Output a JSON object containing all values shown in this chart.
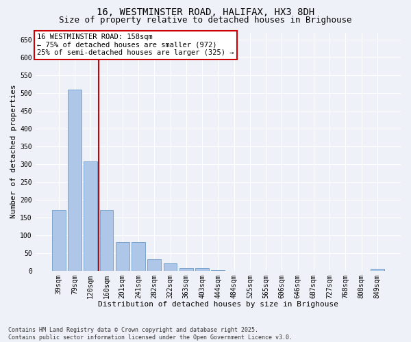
{
  "title": "16, WESTMINSTER ROAD, HALIFAX, HX3 8DH",
  "subtitle": "Size of property relative to detached houses in Brighouse",
  "xlabel": "Distribution of detached houses by size in Brighouse",
  "ylabel": "Number of detached properties",
  "categories": [
    "39sqm",
    "79sqm",
    "120sqm",
    "160sqm",
    "201sqm",
    "241sqm",
    "282sqm",
    "322sqm",
    "363sqm",
    "403sqm",
    "444sqm",
    "484sqm",
    "525sqm",
    "565sqm",
    "606sqm",
    "646sqm",
    "687sqm",
    "727sqm",
    "768sqm",
    "808sqm",
    "849sqm"
  ],
  "values": [
    170,
    510,
    308,
    170,
    80,
    80,
    33,
    20,
    8,
    8,
    2,
    0,
    0,
    0,
    0,
    0,
    0,
    0,
    0,
    0,
    5
  ],
  "bar_color": "#aec6e8",
  "bar_edge_color": "#5a8fc0",
  "vline_color": "#cc0000",
  "vline_pos": 2.5,
  "annotation_text": "16 WESTMINSTER ROAD: 158sqm\n← 75% of detached houses are smaller (972)\n25% of semi-detached houses are larger (325) →",
  "annotation_box_color": "#ffffff",
  "annotation_box_edge": "#cc0000",
  "ylim": [
    0,
    670
  ],
  "yticks": [
    0,
    50,
    100,
    150,
    200,
    250,
    300,
    350,
    400,
    450,
    500,
    550,
    600,
    650
  ],
  "footer": "Contains HM Land Registry data © Crown copyright and database right 2025.\nContains public sector information licensed under the Open Government Licence v3.0.",
  "bg_color": "#eef2f8",
  "plot_bg_color": "#eef2f8",
  "grid_color": "#ffffff",
  "title_fontsize": 10,
  "subtitle_fontsize": 9,
  "axis_label_fontsize": 8,
  "tick_fontsize": 7,
  "annotation_fontsize": 7.5,
  "footer_fontsize": 6
}
